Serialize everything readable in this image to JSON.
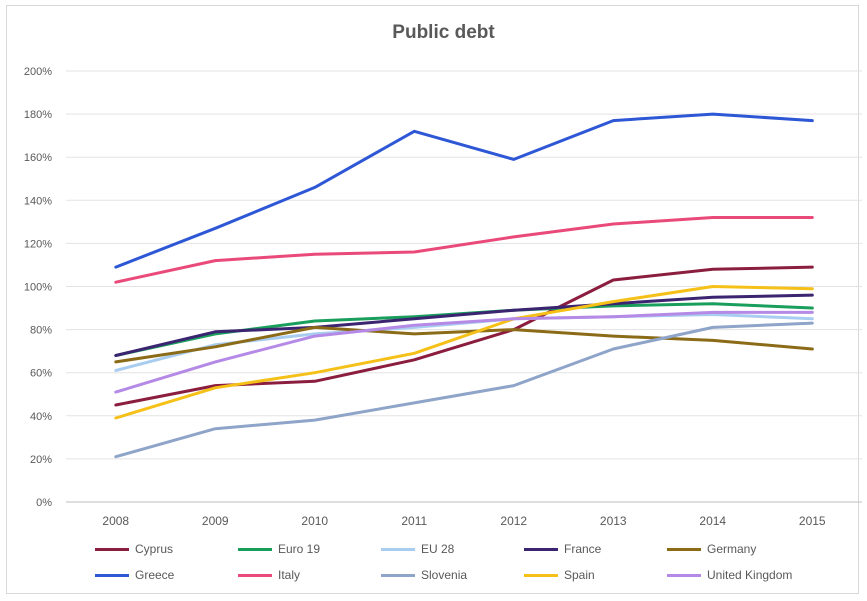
{
  "chart_data": {
    "type": "line",
    "title": "Public debt",
    "xlabel": "",
    "ylabel": "",
    "categories": [
      "2008",
      "2009",
      "2010",
      "2011",
      "2012",
      "2013",
      "2014",
      "2015"
    ],
    "y_ticks": [
      "0%",
      "20%",
      "40%",
      "60%",
      "80%",
      "100%",
      "120%",
      "140%",
      "160%",
      "180%",
      "200%"
    ],
    "ylim": [
      0,
      200
    ],
    "grid": true,
    "legend_position": "bottom",
    "series": [
      {
        "name": "Cyprus",
        "color": "#8b1e3f",
        "values": [
          45,
          54,
          56,
          66,
          80,
          103,
          108,
          109
        ]
      },
      {
        "name": "Euro 19",
        "color": "#1a9e5c",
        "values": [
          68,
          78,
          84,
          86,
          89,
          91,
          92,
          90
        ]
      },
      {
        "name": "EU 28",
        "color": "#a9cdf0",
        "values": [
          61,
          73,
          78,
          81,
          85,
          86,
          87,
          85
        ]
      },
      {
        "name": "France",
        "color": "#3b2470",
        "values": [
          68,
          79,
          81,
          85,
          89,
          92,
          95,
          96
        ]
      },
      {
        "name": "Germany",
        "color": "#8b6b18",
        "values": [
          65,
          72,
          81,
          78,
          80,
          77,
          75,
          71
        ]
      },
      {
        "name": "Greece",
        "color": "#2e57d6",
        "values": [
          109,
          127,
          146,
          172,
          159,
          177,
          180,
          177
        ]
      },
      {
        "name": "Italy",
        "color": "#ea4a7a",
        "values": [
          102,
          112,
          115,
          116,
          123,
          129,
          132,
          132
        ]
      },
      {
        "name": "Slovenia",
        "color": "#8ea4c8",
        "values": [
          21,
          34,
          38,
          46,
          54,
          71,
          81,
          83
        ]
      },
      {
        "name": "Spain",
        "color": "#f5c018",
        "values": [
          39,
          53,
          60,
          69,
          85,
          93,
          100,
          99
        ]
      },
      {
        "name": "United Kingdom",
        "color": "#b58ae6",
        "values": [
          51,
          65,
          77,
          82,
          85,
          86,
          88,
          88
        ]
      }
    ]
  }
}
